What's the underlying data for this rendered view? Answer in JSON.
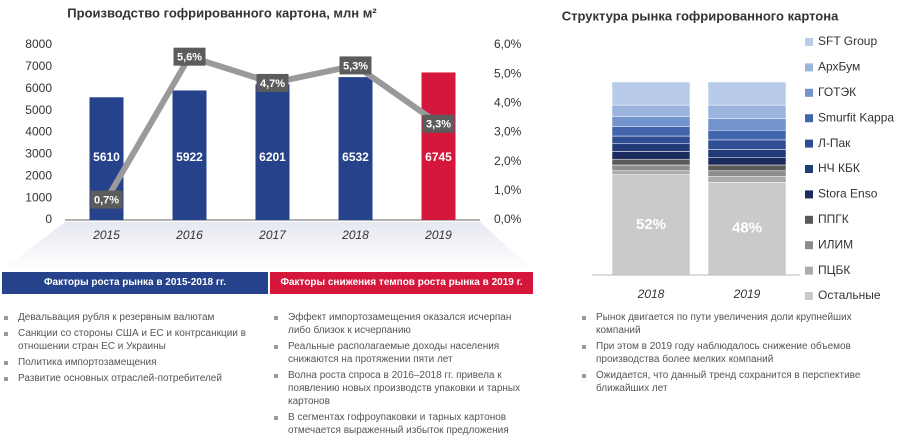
{
  "chart_data": [
    {
      "type": "bar-line",
      "title": "Производство гофрированного картона, млн м²",
      "categories": [
        "2015",
        "2016",
        "2017",
        "2018",
        "2019"
      ],
      "series": [
        {
          "type": "bar",
          "colors": [
            "#26428b",
            "#26428b",
            "#26428b",
            "#26428b",
            "#d4173b"
          ],
          "values": [
            5610,
            5922,
            6201,
            6532,
            6745
          ]
        },
        {
          "type": "line",
          "axis": "y2",
          "color": "#9a9a9a",
          "values": [
            0.7,
            5.6,
            4.7,
            5.3,
            3.3
          ],
          "value_labels": [
            "0,7%",
            "5,6%",
            "4,7%",
            "5,3%",
            "3,3%"
          ]
        }
      ],
      "ylim": [
        0,
        8000
      ],
      "yticks": [
        0,
        1000,
        2000,
        3000,
        4000,
        5000,
        6000,
        7000,
        8000
      ],
      "y2lim": [
        0,
        6
      ],
      "y2ticks": [
        {
          "value": 0,
          "label": "0,0%"
        },
        {
          "value": 1,
          "label": "1,0%"
        },
        {
          "value": 2,
          "label": "2,0%"
        },
        {
          "value": 3,
          "label": "3,0%"
        },
        {
          "value": 4,
          "label": "4,0%"
        },
        {
          "value": 5,
          "label": "5,0%"
        },
        {
          "value": 6,
          "label": "6,0%"
        }
      ]
    },
    {
      "type": "stacked-bar",
      "title": "Структура рынка гофрированного картона",
      "categories": [
        "2018",
        "2019"
      ],
      "ylim": [
        0,
        100
      ],
      "series": [
        {
          "name": "SFT Group",
          "color": "#b9cbe8",
          "values": [
            12,
            12
          ]
        },
        {
          "name": "АрхБум",
          "color": "#9bb4de",
          "values": [
            6,
            7
          ]
        },
        {
          "name": "ГОТЭК",
          "color": "#7293cc",
          "values": [
            5,
            6
          ]
        },
        {
          "name": "Smurfit Kappa",
          "color": "#4266ad",
          "values": [
            5,
            5
          ]
        },
        {
          "name": "Л-Пак",
          "color": "#2f4e93",
          "values": [
            4,
            5
          ]
        },
        {
          "name": "НЧ КБК",
          "color": "#213a78",
          "values": [
            4,
            4
          ]
        },
        {
          "name": "Stora Enso",
          "color": "#1b2b5e",
          "values": [
            4,
            4
          ]
        },
        {
          "name": "ППГК",
          "color": "#5a5a5a",
          "values": [
            3,
            3
          ]
        },
        {
          "name": "ИЛИМ",
          "color": "#8c8c8c",
          "values": [
            3,
            3
          ]
        },
        {
          "name": "ПЦБК",
          "color": "#ababab",
          "values": [
            2,
            3
          ]
        },
        {
          "name": "Остальные",
          "color": "#cacaca",
          "values": [
            52,
            48
          ],
          "value_labels": [
            "52%",
            "48%"
          ]
        }
      ]
    }
  ],
  "factors": {
    "growth": {
      "title": "Факторы роста рынка в 2015-2018 гг.",
      "items": [
        "Девальвация рубля к резервным валютам",
        "Санкции со стороны США и ЕС и контрсанкции в отношении стран ЕС и Украины",
        "Политика импортозамещения",
        "Развитие основных отраслей-потребителей"
      ]
    },
    "decline": {
      "title": "Факторы снижения темпов роста рынка в 2019 г.",
      "items": [
        "Эффект импортозамещения оказался исчерпан либо близок к исчерпанию",
        "Реальные располагаемые доходы населения снижаются на протяжении пяти лет",
        "Волна роста спроса в 2016–2018 гг. привела к появлению новых производств упаковки и тарных картонов",
        "В сегментах гофроупаковки и тарных картонов отмечается выраженный избыток предложения"
      ]
    }
  },
  "notes": [
    "Рынок двигается по пути увеличения доли крупнейших компаний",
    "При этом в 2019 году наблюдалось снижение объемов производства более мелких компаний",
    "Ожидается, что данный тренд сохранится в перспективе ближайших лет"
  ]
}
